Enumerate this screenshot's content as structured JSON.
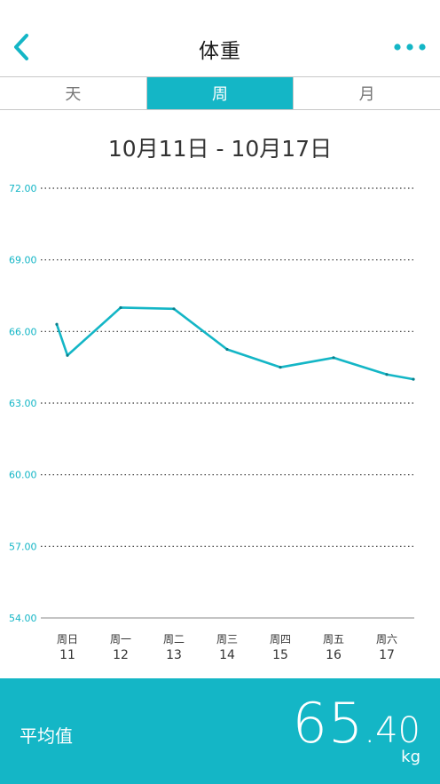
{
  "header": {
    "title": "体重",
    "back_icon": "chevron-left-icon",
    "more_icon": "more-dots-icon",
    "accent": "#14b6c6"
  },
  "tabs": [
    {
      "label": "天",
      "active": false
    },
    {
      "label": "周",
      "active": true
    },
    {
      "label": "月",
      "active": false
    }
  ],
  "range_label": "10月11日 - 10月17日",
  "chart_data": {
    "type": "line",
    "title": "",
    "xlabel": "",
    "ylabel": "",
    "ylim": [
      54,
      72
    ],
    "yticks": [
      "72.00",
      "69.00",
      "66.00",
      "63.00",
      "60.00",
      "57.00",
      "54.00"
    ],
    "categories": [
      {
        "day": "周日",
        "date": "11"
      },
      {
        "day": "周一",
        "date": "12"
      },
      {
        "day": "周二",
        "date": "13"
      },
      {
        "day": "周三",
        "date": "14"
      },
      {
        "day": "周四",
        "date": "15"
      },
      {
        "day": "周五",
        "date": "16"
      },
      {
        "day": "周六",
        "date": "17"
      }
    ],
    "points": [
      {
        "x": 10.8,
        "y": 66.3
      },
      {
        "x": 11.0,
        "y": 65.0
      },
      {
        "x": 12.0,
        "y": 67.0
      },
      {
        "x": 13.0,
        "y": 66.95
      },
      {
        "x": 14.0,
        "y": 65.25
      },
      {
        "x": 15.0,
        "y": 64.5
      },
      {
        "x": 16.0,
        "y": 64.9
      },
      {
        "x": 17.0,
        "y": 64.2
      },
      {
        "x": 17.5,
        "y": 64.0
      }
    ],
    "grid": "dotted",
    "color": "#14b6c6"
  },
  "footer": {
    "avg_label": "平均值",
    "avg_int": "65",
    "avg_dec": ".40",
    "unit": "kg"
  }
}
